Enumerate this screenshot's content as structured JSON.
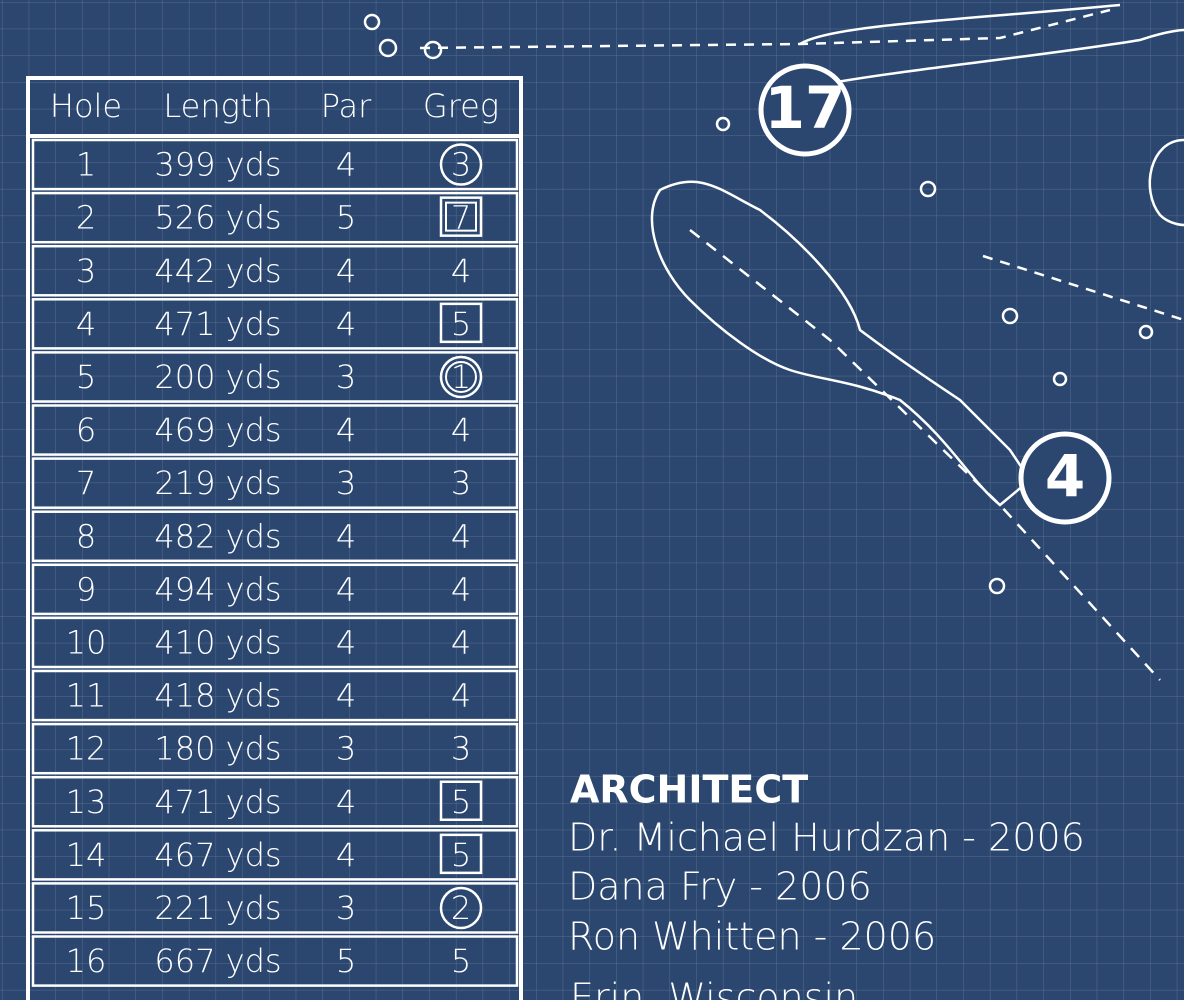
{
  "scorecard": {
    "columns": [
      "Hole",
      "Length",
      "Par",
      "Greg"
    ],
    "rows": [
      {
        "hole": "1",
        "length": "399 yds",
        "par": "4",
        "score": "3",
        "mark": "circle"
      },
      {
        "hole": "2",
        "length": "526 yds",
        "par": "5",
        "score": "7",
        "mark": "double-square"
      },
      {
        "hole": "3",
        "length": "442 yds",
        "par": "4",
        "score": "4"
      },
      {
        "hole": "4",
        "length": "471 yds",
        "par": "4",
        "score": "5",
        "mark": "square"
      },
      {
        "hole": "5",
        "length": "200 yds",
        "par": "3",
        "score": "1",
        "mark": "double-circle"
      },
      {
        "hole": "6",
        "length": "469 yds",
        "par": "4",
        "score": "4"
      },
      {
        "hole": "7",
        "length": "219 yds",
        "par": "3",
        "score": "3"
      },
      {
        "hole": "8",
        "length": "482 yds",
        "par": "4",
        "score": "4"
      },
      {
        "hole": "9",
        "length": "494 yds",
        "par": "4",
        "score": "4"
      },
      {
        "hole": "10",
        "length": "410 yds",
        "par": "4",
        "score": "4"
      },
      {
        "hole": "11",
        "length": "418 yds",
        "par": "4",
        "score": "4"
      },
      {
        "hole": "12",
        "length": "180 yds",
        "par": "3",
        "score": "3"
      },
      {
        "hole": "13",
        "length": "471 yds",
        "par": "4",
        "score": "5",
        "mark": "square"
      },
      {
        "hole": "14",
        "length": "467 yds",
        "par": "4",
        "score": "5",
        "mark": "square"
      },
      {
        "hole": "15",
        "length": "221 yds",
        "par": "3",
        "score": "2",
        "mark": "circle"
      },
      {
        "hole": "16",
        "length": "667 yds",
        "par": "5",
        "score": "5"
      }
    ]
  },
  "map": {
    "hole_labels": [
      "17",
      "4"
    ]
  },
  "architect": {
    "heading": "ARCHITECT",
    "lines": [
      "Dr. Michael Hurdzan  -  2006",
      "Dana Fry  -  2006",
      "Ron Whitten  -  2006"
    ],
    "location": "Erin, Wisconsin"
  }
}
